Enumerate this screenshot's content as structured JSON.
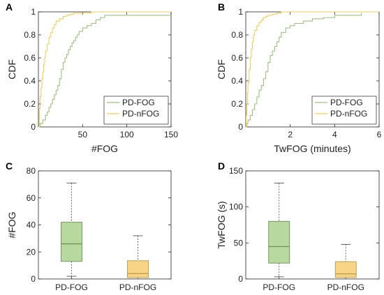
{
  "colors": {
    "pd_fog": "#9cc27e",
    "pd_nfog": "#f2cf5a",
    "pd_fog_fill": "#b7d89f",
    "pd_nfog_fill": "#f7d486",
    "whisker": "#555555",
    "frame": "#262626"
  },
  "chart_data": [
    {
      "panel": "A",
      "type": "line",
      "xlabel": "#FOG",
      "ylabel": "CDF",
      "xlim": [
        0,
        150
      ],
      "ylim": [
        0,
        1
      ],
      "xticks": [
        50,
        100,
        150
      ],
      "yticks": [
        0,
        0.2,
        0.4,
        0.6,
        0.8,
        1
      ],
      "grid": false,
      "legend": "bottom-right",
      "series": [
        {
          "name": "PD-FOG",
          "x": [
            0,
            2,
            5,
            8,
            10,
            12,
            14,
            16,
            18,
            20,
            22,
            24,
            26,
            28,
            30,
            32,
            34,
            36,
            38,
            40,
            42,
            44,
            46,
            50,
            55,
            60,
            65,
            70,
            75,
            150
          ],
          "y": [
            0,
            0.03,
            0.06,
            0.1,
            0.13,
            0.17,
            0.2,
            0.24,
            0.28,
            0.32,
            0.36,
            0.42,
            0.5,
            0.56,
            0.6,
            0.63,
            0.67,
            0.7,
            0.73,
            0.75,
            0.78,
            0.8,
            0.83,
            0.86,
            0.88,
            0.9,
            0.93,
            0.95,
            0.97,
            0.97
          ]
        },
        {
          "name": "PD-nFOG",
          "x": [
            0,
            1,
            2,
            3,
            4,
            5,
            6,
            7,
            8,
            10,
            12,
            14,
            16,
            18,
            20,
            24,
            28,
            32,
            36,
            40,
            60,
            150
          ],
          "y": [
            0,
            0.16,
            0.26,
            0.34,
            0.42,
            0.48,
            0.54,
            0.6,
            0.66,
            0.72,
            0.78,
            0.82,
            0.86,
            0.89,
            0.92,
            0.94,
            0.96,
            0.97,
            0.98,
            0.99,
            1.0,
            1.0
          ]
        }
      ]
    },
    {
      "panel": "B",
      "type": "line",
      "xlabel": "TwFOG (minutes)",
      "ylabel": "CDF",
      "xlim": [
        0,
        6
      ],
      "ylim": [
        0,
        1
      ],
      "xticks": [
        2,
        4,
        6
      ],
      "yticks": [
        0,
        0.2,
        0.4,
        0.6,
        0.8,
        1
      ],
      "grid": false,
      "legend": "bottom-right",
      "series": [
        {
          "name": "PD-FOG",
          "x": [
            0,
            0.05,
            0.1,
            0.2,
            0.3,
            0.4,
            0.5,
            0.6,
            0.7,
            0.8,
            0.9,
            1.0,
            1.1,
            1.2,
            1.3,
            1.4,
            1.5,
            1.6,
            1.8,
            2.0,
            2.2,
            2.6,
            3.0,
            3.5,
            4.0,
            5.2
          ],
          "y": [
            0,
            0.03,
            0.06,
            0.1,
            0.15,
            0.2,
            0.26,
            0.32,
            0.36,
            0.42,
            0.48,
            0.56,
            0.62,
            0.66,
            0.7,
            0.74,
            0.78,
            0.82,
            0.86,
            0.88,
            0.9,
            0.92,
            0.94,
            0.95,
            0.97,
            0.99
          ]
        },
        {
          "name": "PD-nFOG",
          "x": [
            0,
            0.02,
            0.05,
            0.08,
            0.1,
            0.15,
            0.2,
            0.25,
            0.3,
            0.35,
            0.4,
            0.5,
            0.6,
            0.7,
            0.8,
            0.9,
            1.0,
            1.2,
            1.4,
            1.6,
            6.0
          ],
          "y": [
            0,
            0.1,
            0.2,
            0.3,
            0.38,
            0.5,
            0.6,
            0.68,
            0.74,
            0.8,
            0.84,
            0.88,
            0.91,
            0.93,
            0.95,
            0.96,
            0.97,
            0.98,
            0.99,
            1.0,
            1.0
          ]
        }
      ]
    },
    {
      "panel": "C",
      "type": "box",
      "xlabel": "",
      "ylabel": "#FOG",
      "ylim": [
        0,
        80
      ],
      "yticks": [
        0,
        20,
        40,
        60,
        80
      ],
      "categories": [
        "PD-FOG",
        "PD-nFOG"
      ],
      "boxes": [
        {
          "min": 2,
          "q1": 13,
          "median": 26,
          "q3": 42,
          "max": 71
        },
        {
          "min": 0,
          "q1": 1,
          "median": 4,
          "q3": 13.5,
          "max": 32
        }
      ]
    },
    {
      "panel": "D",
      "type": "box",
      "xlabel": "",
      "ylabel": "TwFOG (s)",
      "ylim": [
        0,
        150
      ],
      "yticks": [
        0,
        50,
        100,
        150
      ],
      "categories": [
        "PD-FOG",
        "PD-nFOG"
      ],
      "boxes": [
        {
          "min": 3,
          "q1": 22,
          "median": 45,
          "q3": 80,
          "max": 133
        },
        {
          "min": 0,
          "q1": 2,
          "median": 7,
          "q3": 24,
          "max": 48
        }
      ]
    }
  ]
}
